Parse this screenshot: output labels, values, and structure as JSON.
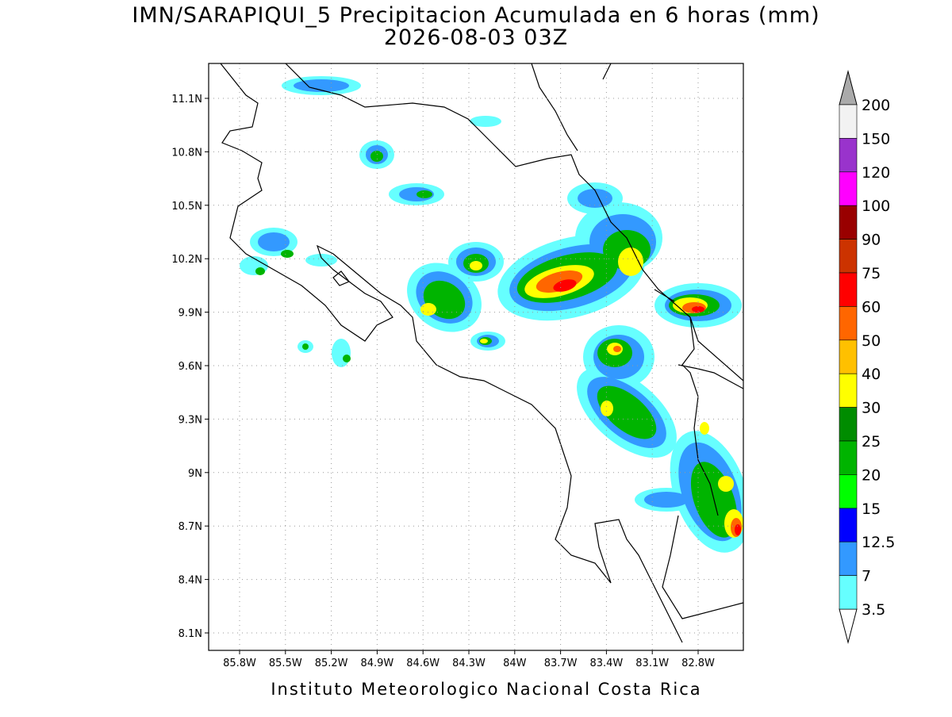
{
  "header": {
    "title": "IMN/SARAPIQUI_5 Precipitacion Acumulada en 6 horas (mm)",
    "subtitle": "2026-08-03 03Z"
  },
  "map": {
    "lat_labels": [
      "11.1N",
      "10.8N",
      "10.5N",
      "10.2N",
      "9.9N",
      "9.6N",
      "9.3N",
      "9N",
      "8.7N",
      "8.4N",
      "8.1N"
    ],
    "lon_labels": [
      "85.8W",
      "85.5W",
      "85.2W",
      "84.9W",
      "84.6W",
      "84.3W",
      "84W",
      "83.7W",
      "83.4W",
      "83.1W",
      "82.8W"
    ]
  },
  "colorbar": {
    "labels": [
      "200",
      "150",
      "120",
      "100",
      "90",
      "75",
      "60",
      "50",
      "40",
      "30",
      "25",
      "20",
      "15",
      "12.5",
      "7",
      "3.5"
    ],
    "colors": [
      "#f2f2f2",
      "#9933cc",
      "#ff00ff",
      "#990000",
      "#cc3300",
      "#ff0000",
      "#ff6600",
      "#ffc000",
      "#ffff00",
      "#008c00",
      "#00b400",
      "#00ff00",
      "#0000ff",
      "#3399ff",
      "#66ffff"
    ],
    "over_color": "#aaaaaa",
    "under_color": "#ffffff"
  },
  "footer": "Instituto Meteorologico Nacional Costa Rica"
}
